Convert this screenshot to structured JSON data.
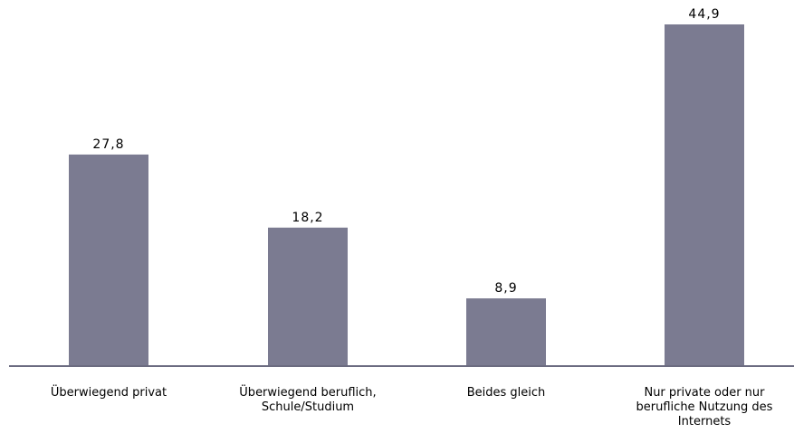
{
  "chart_data": {
    "type": "bar",
    "categories": [
      [
        "Überwiegend privat"
      ],
      [
        "Überwiegend beruflich,",
        "Schule/Studium"
      ],
      [
        "Beides gleich"
      ],
      [
        "Nur private oder nur",
        "berufliche Nutzung des",
        "Internets"
      ]
    ],
    "values": [
      27.8,
      18.2,
      8.9,
      44.9
    ],
    "value_labels": [
      "27,8",
      "18,2",
      "8,9",
      "44,9"
    ],
    "title": "",
    "xlabel": "",
    "ylabel": "",
    "ylim": [
      0,
      50
    ],
    "grid": false,
    "legend": "none",
    "colors": {
      "bar": "#7b7b91",
      "axis": "#6b6b80",
      "text": "#000000"
    }
  }
}
